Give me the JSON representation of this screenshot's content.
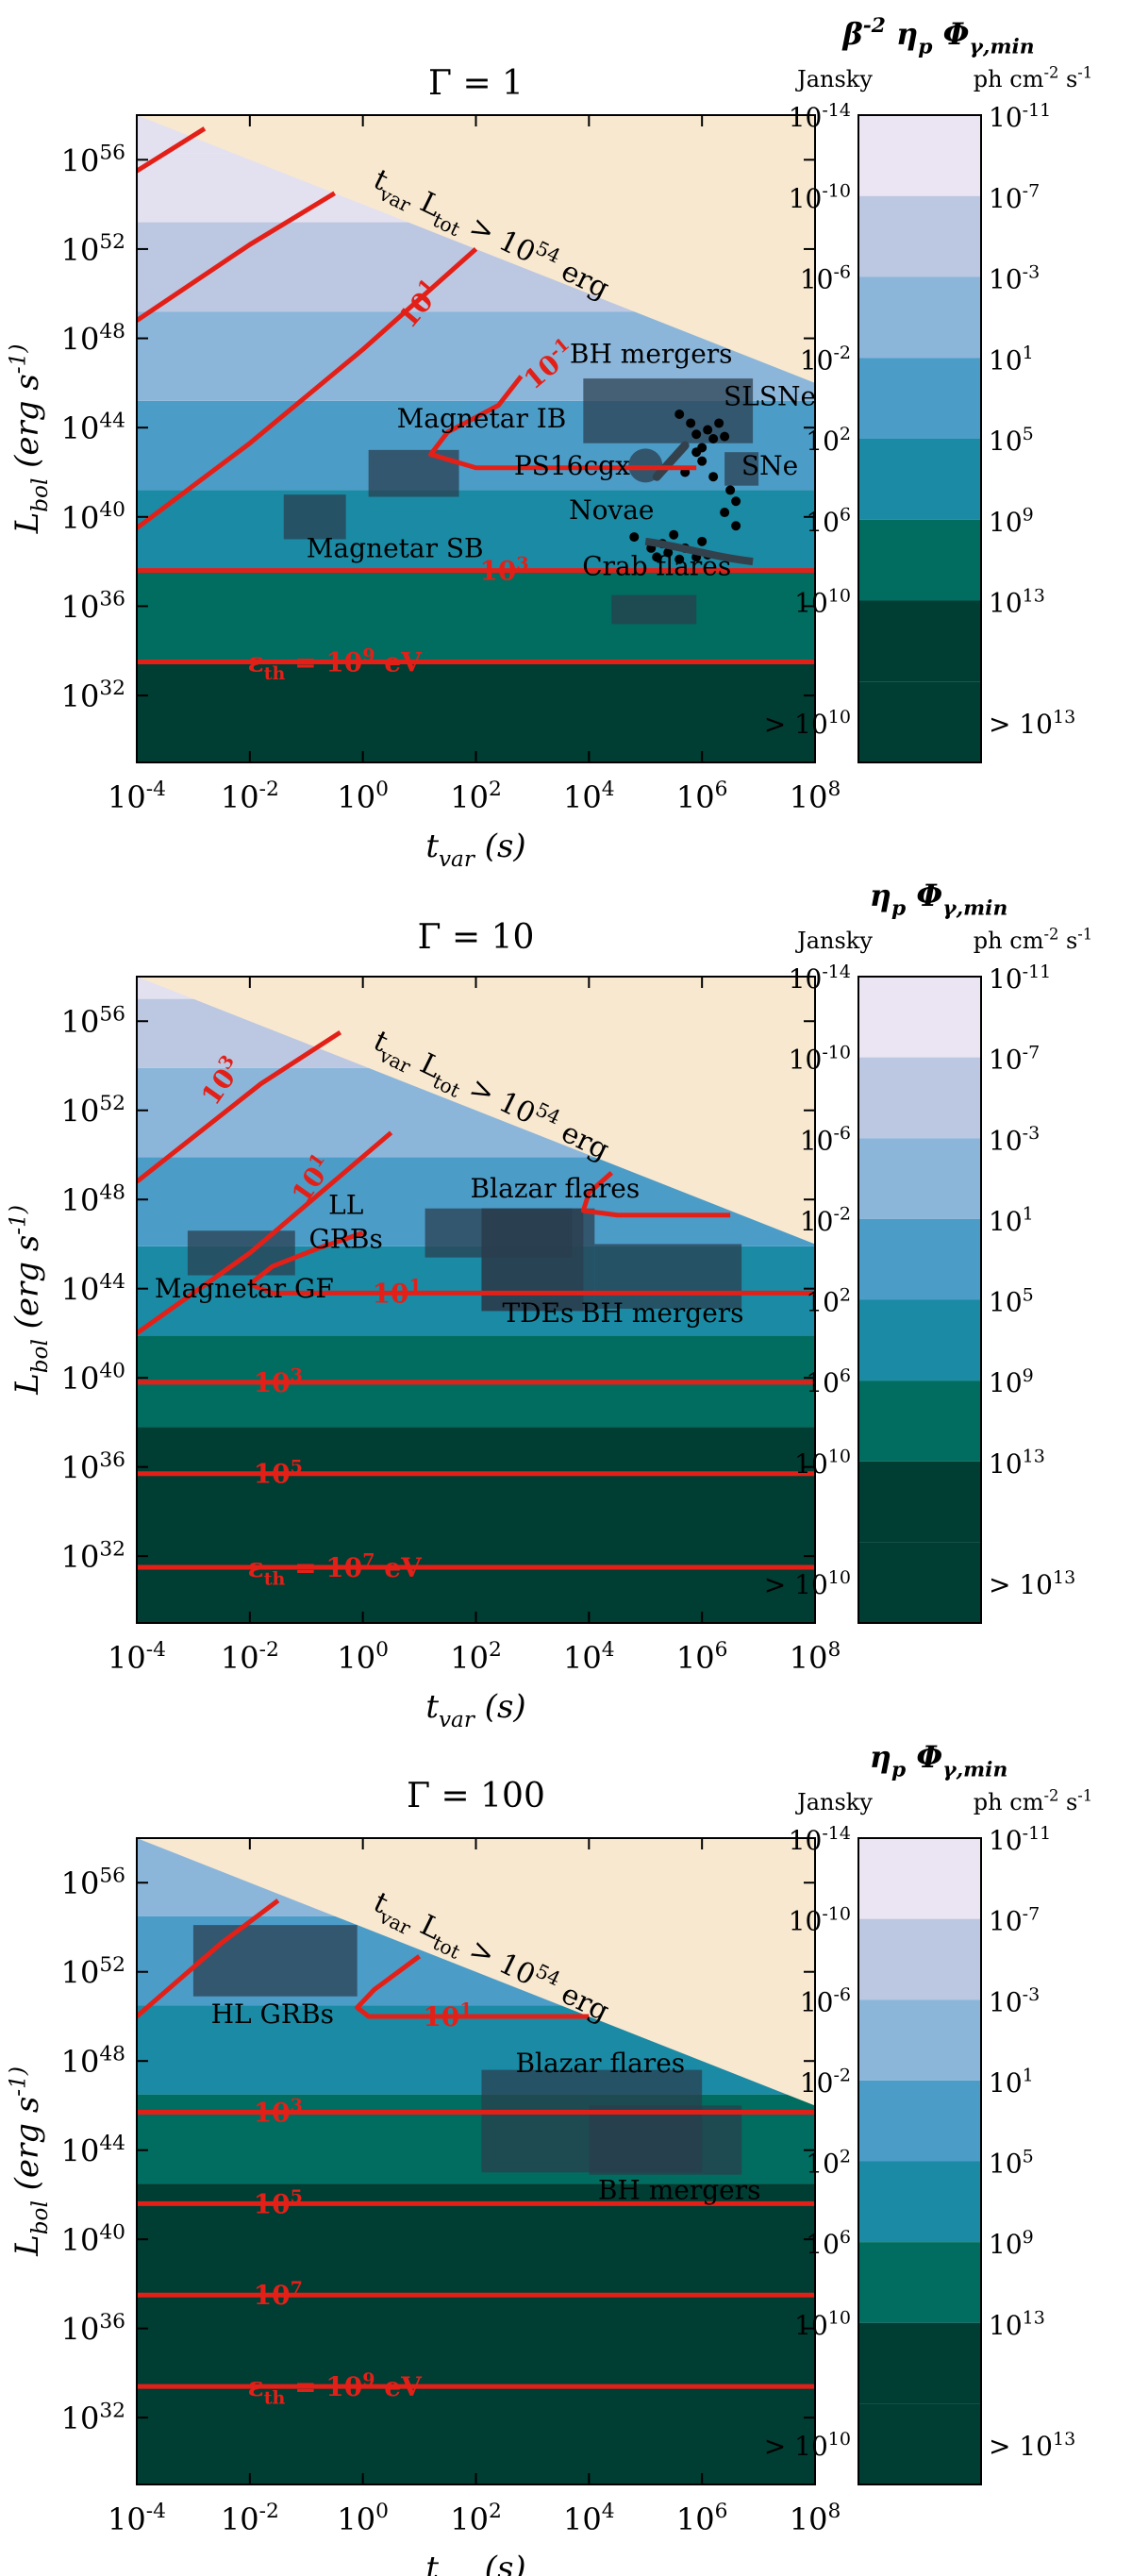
{
  "colors": {
    "forbidden": "#f8e8d0",
    "band_colors": [
      "#003d33",
      "#006d60",
      "#1b8aa4",
      "#4c9cc8",
      "#8bb6da",
      "#bcc7e1",
      "#e3e1ef"
    ],
    "contour": "#e32018",
    "box": "#2a3d4c",
    "point": "#000000"
  },
  "common": {
    "xlabel": "t_var (s)",
    "ylabel": "L_bol (erg s^-1)",
    "xticks": [
      "10^-4",
      "10^-2",
      "10^0",
      "10^2",
      "10^4",
      "10^6",
      "10^8"
    ],
    "yticks": [
      "10^32",
      "10^36",
      "10^40",
      "10^44",
      "10^48",
      "10^52",
      "10^56"
    ],
    "limit_label": "t_var L_tot > 10^54 erg",
    "cb_units_left": "Jansky",
    "cb_units_right": "ph cm^-2 s^-1",
    "cb_left": [
      "10^-14",
      "10^-10",
      "10^-6",
      "10^-2",
      "10^2",
      "10^6",
      "10^10",
      "> 10^10"
    ],
    "cb_right": [
      "10^-11",
      "10^-7",
      "10^-3",
      "10^1",
      "10^5",
      "10^9",
      "10^13",
      "> 10^13"
    ]
  },
  "chart_data": [
    {
      "type": "heatmap",
      "title": "Γ = 1",
      "colorbar_title": "β^-2 η_p Φ_γ,min",
      "xlim_log10": [
        -4,
        8
      ],
      "ylim_log10": [
        29,
        58
      ],
      "limit_line": "log10(L) = 54 - log10(t_var)",
      "band_edges_log10L": [
        33.5,
        37.6,
        41.2,
        45.2,
        49.2,
        53.2,
        56.3
      ],
      "contours": [
        {
          "label": "ε_th = 10^9 eV",
          "kind": "horizontal",
          "logL": 33.5
        },
        {
          "label": "10^3",
          "kind": "horizontal",
          "logL": 37.6
        },
        {
          "label": "10^-1",
          "kind": "curve",
          "points": [
            [
              5.9,
              42.2
            ],
            [
              3.5,
              42.2
            ],
            [
              2.0,
              42.2
            ],
            [
              1.2,
              42.8
            ],
            [
              1.5,
              43.8
            ],
            [
              2.4,
              45.0
            ],
            [
              2.8,
              46.3
            ]
          ]
        },
        {
          "label": "10^1",
          "kind": "curve",
          "points": [
            [
              -4,
              39.5
            ],
            [
              -2,
              43.3
            ],
            [
              0,
              47.5
            ],
            [
              2,
              52
            ]
          ]
        },
        {
          "label": "",
          "kind": "curve",
          "points": [
            [
              -4,
              48.8
            ],
            [
              -2,
              52.2
            ],
            [
              -0.5,
              54.5
            ]
          ]
        },
        {
          "label": "",
          "kind": "curve",
          "points": [
            [
              -4,
              55.5
            ],
            [
              -2.8,
              57.4
            ]
          ]
        }
      ],
      "sources": [
        {
          "label": "Magnetar SB",
          "x": [
            -1.4,
            -0.3
          ],
          "y": [
            39.0,
            41.0
          ]
        },
        {
          "label": "Magnetar IB",
          "x": [
            0.1,
            1.7
          ],
          "y": [
            40.9,
            43.0
          ]
        },
        {
          "label": "BH mergers",
          "x": [
            3.9,
            6.9
          ],
          "y": [
            43.3,
            46.2
          ]
        },
        {
          "label": "SLSNe",
          "x": null,
          "y": null
        },
        {
          "label": "SNe",
          "x": [
            6.4,
            7.0
          ],
          "y": [
            41.4,
            42.9
          ]
        },
        {
          "label": "PS16cgx",
          "x": [
            5.0
          ],
          "y": [
            42.3
          ]
        },
        {
          "label": "Novae",
          "x": null,
          "y": null
        },
        {
          "label": "Crab flares",
          "x": [
            4.4,
            5.9
          ],
          "y": [
            35.2,
            36.5
          ]
        }
      ],
      "points_log": [
        [
          5.6,
          44.6
        ],
        [
          5.8,
          44.2
        ],
        [
          6.1,
          43.9
        ],
        [
          6.3,
          44.2
        ],
        [
          6.2,
          43.5
        ],
        [
          5.9,
          42.9
        ],
        [
          6.0,
          42.5
        ],
        [
          6.2,
          41.8
        ],
        [
          5.7,
          42.0
        ],
        [
          6.5,
          41.2
        ],
        [
          6.6,
          40.7
        ],
        [
          6.4,
          40.2
        ],
        [
          6.6,
          39.6
        ],
        [
          5.5,
          39.2
        ],
        [
          5.3,
          38.8
        ],
        [
          5.7,
          38.6
        ],
        [
          5.9,
          38.2
        ],
        [
          5.6,
          38.1
        ],
        [
          5.4,
          38.4
        ],
        [
          6.0,
          38.9
        ],
        [
          5.1,
          38.6
        ],
        [
          5.2,
          38.2
        ],
        [
          4.8,
          39.1
        ],
        [
          6.1,
          38.3
        ],
        [
          5.9,
          43.7
        ],
        [
          6.0,
          43.1
        ],
        [
          6.4,
          43.6
        ]
      ]
    },
    {
      "type": "heatmap",
      "title": "Γ = 10",
      "colorbar_title": "η_p Φ_γ,min",
      "xlim_log10": [
        -4,
        8
      ],
      "ylim_log10": [
        29,
        58
      ],
      "limit_line": "log10(L) = 54 - log10(t_var)",
      "band_edges_log10L": [
        37.8,
        41.9,
        45.9,
        49.9,
        53.9,
        57.0
      ],
      "contours": [
        {
          "label": "ε_th = 10^7 eV",
          "kind": "horizontal",
          "logL": 31.5
        },
        {
          "label": "10^5",
          "kind": "horizontal",
          "logL": 35.7
        },
        {
          "label": "10^3",
          "kind": "horizontal",
          "logL": 39.8
        },
        {
          "label": "10^1",
          "kind": "curve",
          "points": [
            [
              8.0,
              43.8
            ],
            [
              1.0,
              43.8
            ],
            [
              -1.6,
              43.8
            ],
            [
              -2.0,
              44.2
            ],
            [
              -1.6,
              45.0
            ],
            [
              -0.8,
              45.8
            ],
            [
              0,
              46.5
            ]
          ]
        },
        {
          "label": "",
          "kind": "curve",
          "points": [
            [
              6.5,
              47.3
            ],
            [
              4.5,
              47.3
            ],
            [
              3.9,
              47.5
            ],
            [
              4.0,
              48.3
            ],
            [
              4.4,
              49.2
            ]
          ]
        },
        {
          "label": "10^1",
          "kind": "curve",
          "points": [
            [
              -4,
              42.0
            ],
            [
              -2,
              45.6
            ],
            [
              0.5,
              51.0
            ]
          ]
        },
        {
          "label": "10^3",
          "kind": "curve",
          "points": [
            [
              -4,
              48.8
            ],
            [
              -1.8,
              53.2
            ],
            [
              -0.4,
              55.5
            ]
          ]
        }
      ],
      "sources": [
        {
          "label": "Magnetar GF",
          "x": [
            -3.1,
            -1.2
          ],
          "y": [
            44.6,
            46.6
          ]
        },
        {
          "label": "LL GRBs",
          "x": [
            1.1,
            3.7
          ],
          "y": [
            45.4,
            47.6
          ]
        },
        {
          "label": "Blazar flares",
          "x": [
            2.1,
            3.9
          ],
          "y": [
            43.0,
            47.6
          ]
        },
        {
          "label": "TDEs",
          "x": [
            2.1,
            4.1
          ],
          "y": [
            43.0,
            47.6
          ]
        },
        {
          "label": "BH mergers",
          "x": [
            4.1,
            6.7
          ],
          "y": [
            43.1,
            46.0
          ]
        }
      ]
    },
    {
      "type": "heatmap",
      "title": "Γ = 100",
      "colorbar_title": "η_p Φ_γ,min",
      "xlim_log10": [
        -4,
        8
      ],
      "ylim_log10": [
        29,
        58
      ],
      "limit_line": "log10(L) = 54 - log10(t_var)",
      "band_edges_log10L": [
        42.5,
        46.5,
        50.5,
        54.5
      ],
      "contours": [
        {
          "label": "ε_th = 10^9 eV",
          "kind": "horizontal",
          "logL": 33.4
        },
        {
          "label": "10^7",
          "kind": "horizontal",
          "logL": 37.5
        },
        {
          "label": "10^5",
          "kind": "horizontal",
          "logL": 41.6
        },
        {
          "label": "10^3",
          "kind": "horizontal",
          "logL": 45.7
        },
        {
          "label": "10^1",
          "kind": "curve",
          "points": [
            [
              4.0,
              50.0
            ],
            [
              1.5,
              50.0
            ],
            [
              0.1,
              50.0
            ],
            [
              -0.1,
              50.4
            ],
            [
              0.2,
              51.2
            ],
            [
              1.0,
              52.7
            ]
          ]
        },
        {
          "label": "",
          "kind": "curve",
          "points": [
            [
              -4,
              50.0
            ],
            [
              -2.5,
              53.3
            ],
            [
              -1.5,
              55.2
            ]
          ]
        }
      ],
      "sources": [
        {
          "label": "HL GRBs",
          "x": [
            -3.0,
            -0.1
          ],
          "y": [
            50.9,
            54.1
          ]
        },
        {
          "label": "Blazar flares",
          "x": [
            2.1,
            6.0
          ],
          "y": [
            43.0,
            47.6
          ]
        },
        {
          "label": "BH mergers",
          "x": [
            4.0,
            6.7
          ],
          "y": [
            42.9,
            46.0
          ]
        }
      ]
    }
  ]
}
